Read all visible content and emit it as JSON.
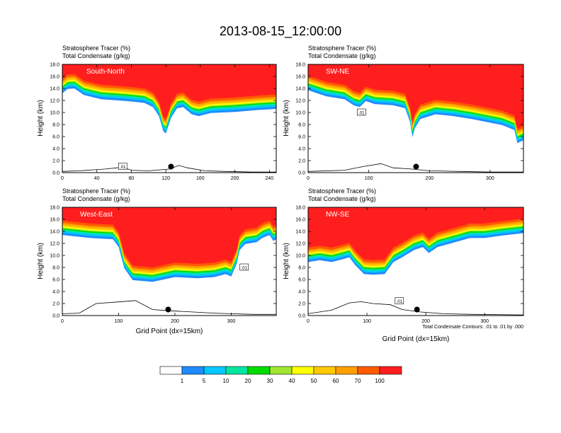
{
  "page": {
    "title": "2013-08-15_12:00:00",
    "contour_note": "Total Condensate Contours: .01 to .01 by .000",
    "contour_label": ".01"
  },
  "colors": {
    "levels": [
      "#ffffff",
      "#1e8cff",
      "#00c8ff",
      "#00e6a0",
      "#00dc00",
      "#a0e632",
      "#ffff00",
      "#ffc800",
      "#ffa000",
      "#ff5a00",
      "#ff1e1e"
    ],
    "contour": "#000000",
    "background": "#ffffff"
  },
  "colorbar": {
    "labels": [
      "1",
      "5",
      "10",
      "20",
      "30",
      "40",
      "50",
      "60",
      "70",
      "100"
    ]
  },
  "chart_data": [
    {
      "type": "heatmap",
      "id": "south-north",
      "label": "South-North",
      "title_line1": "Stratosphere Tracer   (%)",
      "title_line2": "Total Condensate   (g/kg)",
      "xlabel": "",
      "ylabel": "Height (km)",
      "xlim": [
        0,
        248
      ],
      "ylim": [
        0,
        18
      ],
      "xticks": [
        0,
        40,
        80,
        120,
        160,
        200,
        240
      ],
      "yticks": [
        "0.0",
        "2.0",
        "4.0",
        "6.0",
        "8.0",
        "10.0",
        "12.0",
        "14.0",
        "16.0",
        "18.0"
      ],
      "tracer_base_km": [
        [
          0,
          14.3
        ],
        [
          6,
          15.0
        ],
        [
          14,
          15.1
        ],
        [
          25,
          14.0
        ],
        [
          45,
          13.3
        ],
        [
          75,
          13.0
        ],
        [
          95,
          12.7
        ],
        [
          105,
          12.0
        ],
        [
          112,
          10.5
        ],
        [
          117,
          8.0
        ],
        [
          120,
          7.6
        ],
        [
          126,
          10.2
        ],
        [
          133,
          11.8
        ],
        [
          140,
          12.0
        ],
        [
          150,
          10.8
        ],
        [
          158,
          10.5
        ],
        [
          172,
          11.0
        ],
        [
          200,
          11.2
        ],
        [
          225,
          11.5
        ],
        [
          248,
          11.7
        ]
      ],
      "terrain_km": [
        [
          0,
          0.2
        ],
        [
          20,
          0.3
        ],
        [
          50,
          0.6
        ],
        [
          70,
          0.9
        ],
        [
          80,
          0.4
        ],
        [
          100,
          0.3
        ],
        [
          125,
          0.6
        ],
        [
          135,
          1.2
        ],
        [
          145,
          0.8
        ],
        [
          165,
          0.3
        ],
        [
          190,
          0.2
        ],
        [
          220,
          0.1
        ],
        [
          248,
          0.1
        ]
      ],
      "marker_x": 126,
      "marker_y_km": 1.0,
      "contour_box_x": 70,
      "contour_box_y_km": 1.0
    },
    {
      "type": "heatmap",
      "id": "sw-ne",
      "label": "SW-NE",
      "title_line1": "Stratosphere Tracer   (%)",
      "title_line2": "Total Condensate   (g/kg)",
      "xlabel": "",
      "ylabel": "Height (km)",
      "xlim": [
        0,
        355
      ],
      "ylim": [
        0,
        18
      ],
      "xticks": [
        0,
        100,
        200,
        300
      ],
      "yticks": [
        "0.0",
        "2.0",
        "4.0",
        "6.0",
        "8.0",
        "10.0",
        "12.0",
        "14.0",
        "16.0",
        "18.0"
      ],
      "tracer_base_km": [
        [
          0,
          14.8
        ],
        [
          30,
          13.8
        ],
        [
          60,
          13.3
        ],
        [
          75,
          12.3
        ],
        [
          85,
          12.0
        ],
        [
          95,
          13.0
        ],
        [
          110,
          12.5
        ],
        [
          140,
          12.3
        ],
        [
          160,
          11.8
        ],
        [
          168,
          9.5
        ],
        [
          172,
          7.0
        ],
        [
          176,
          8.5
        ],
        [
          185,
          10.0
        ],
        [
          210,
          10.8
        ],
        [
          240,
          10.5
        ],
        [
          270,
          10.0
        ],
        [
          300,
          9.4
        ],
        [
          320,
          9.0
        ],
        [
          340,
          8.2
        ],
        [
          345,
          6.0
        ],
        [
          355,
          6.5
        ]
      ],
      "terrain_km": [
        [
          0,
          0.2
        ],
        [
          60,
          0.4
        ],
        [
          90,
          1.0
        ],
        [
          120,
          1.5
        ],
        [
          140,
          0.8
        ],
        [
          170,
          0.6
        ],
        [
          200,
          0.3
        ],
        [
          250,
          0.2
        ],
        [
          300,
          0.1
        ],
        [
          355,
          0.1
        ]
      ],
      "marker_x": 178,
      "marker_y_km": 1.0,
      "contour_box_x": 88,
      "contour_box_y_km": 10.0
    },
    {
      "type": "heatmap",
      "id": "west-east",
      "label": "West-East",
      "title_line1": "Stratosphere Tracer   (%)",
      "title_line2": "Total Condensate   (g/kg)",
      "xlabel": "Grid Point (dx=15km)",
      "ylabel": "Height (km)",
      "xlim": [
        0,
        380
      ],
      "ylim": [
        0,
        18
      ],
      "xticks": [
        0,
        100,
        200,
        300
      ],
      "yticks": [
        "0.0",
        "2.0",
        "4.0",
        "6.0",
        "8.0",
        "10.0",
        "12.0",
        "14.0",
        "16.0",
        "18.0"
      ],
      "tracer_base_km": [
        [
          0,
          14.5
        ],
        [
          50,
          14.0
        ],
        [
          90,
          13.8
        ],
        [
          100,
          12.5
        ],
        [
          110,
          9.0
        ],
        [
          125,
          7.0
        ],
        [
          160,
          6.7
        ],
        [
          200,
          7.5
        ],
        [
          240,
          7.3
        ],
        [
          270,
          7.5
        ],
        [
          290,
          8.0
        ],
        [
          300,
          7.6
        ],
        [
          310,
          9.8
        ],
        [
          315,
          12.0
        ],
        [
          325,
          13.0
        ],
        [
          345,
          13.3
        ],
        [
          355,
          14.0
        ],
        [
          368,
          14.5
        ],
        [
          375,
          13.5
        ],
        [
          380,
          13.8
        ]
      ],
      "terrain_km": [
        [
          0,
          0.3
        ],
        [
          30,
          0.4
        ],
        [
          60,
          2.0
        ],
        [
          90,
          2.2
        ],
        [
          130,
          2.5
        ],
        [
          160,
          1.0
        ],
        [
          190,
          0.8
        ],
        [
          230,
          0.6
        ],
        [
          270,
          0.4
        ],
        [
          300,
          0.3
        ],
        [
          340,
          0.2
        ],
        [
          380,
          0.2
        ]
      ],
      "marker_x": 188,
      "marker_y_km": 1.0,
      "contour_box_x": 323,
      "contour_box_y_km": 8.0
    },
    {
      "type": "heatmap",
      "id": "nw-se",
      "label": "NW-SE",
      "title_line1": "Stratosphere Tracer   (%)",
      "title_line2": "Total Condensate   (g/kg)",
      "xlabel": "Grid Point (dx=15km)",
      "ylabel": "Height (km)",
      "xlim": [
        0,
        366
      ],
      "ylim": [
        0,
        18
      ],
      "xticks": [
        0,
        100,
        200,
        300
      ],
      "yticks": [
        "0.0",
        "2.0",
        "4.0",
        "6.0",
        "8.0",
        "10.0",
        "12.0",
        "14.0",
        "16.0",
        "18.0"
      ],
      "tracer_base_km": [
        [
          0,
          10.0
        ],
        [
          20,
          10.3
        ],
        [
          40,
          10.0
        ],
        [
          60,
          10.5
        ],
        [
          70,
          10.8
        ],
        [
          80,
          9.5
        ],
        [
          95,
          8.0
        ],
        [
          110,
          7.9
        ],
        [
          130,
          8.0
        ],
        [
          145,
          10.0
        ],
        [
          160,
          10.8
        ],
        [
          180,
          12.0
        ],
        [
          195,
          12.5
        ],
        [
          205,
          11.5
        ],
        [
          220,
          12.5
        ],
        [
          250,
          13.3
        ],
        [
          275,
          14.0
        ],
        [
          300,
          14.0
        ],
        [
          330,
          14.4
        ],
        [
          366,
          14.8
        ]
      ],
      "terrain_km": [
        [
          0,
          0.3
        ],
        [
          40,
          0.9
        ],
        [
          70,
          2.1
        ],
        [
          90,
          2.3
        ],
        [
          110,
          2.0
        ],
        [
          140,
          1.8
        ],
        [
          160,
          1.0
        ],
        [
          190,
          0.6
        ],
        [
          230,
          0.3
        ],
        [
          280,
          0.2
        ],
        [
          366,
          0.1
        ]
      ],
      "marker_x": 185,
      "marker_y_km": 1.0,
      "contour_box_x": 155,
      "contour_box_y_km": 2.4
    }
  ]
}
